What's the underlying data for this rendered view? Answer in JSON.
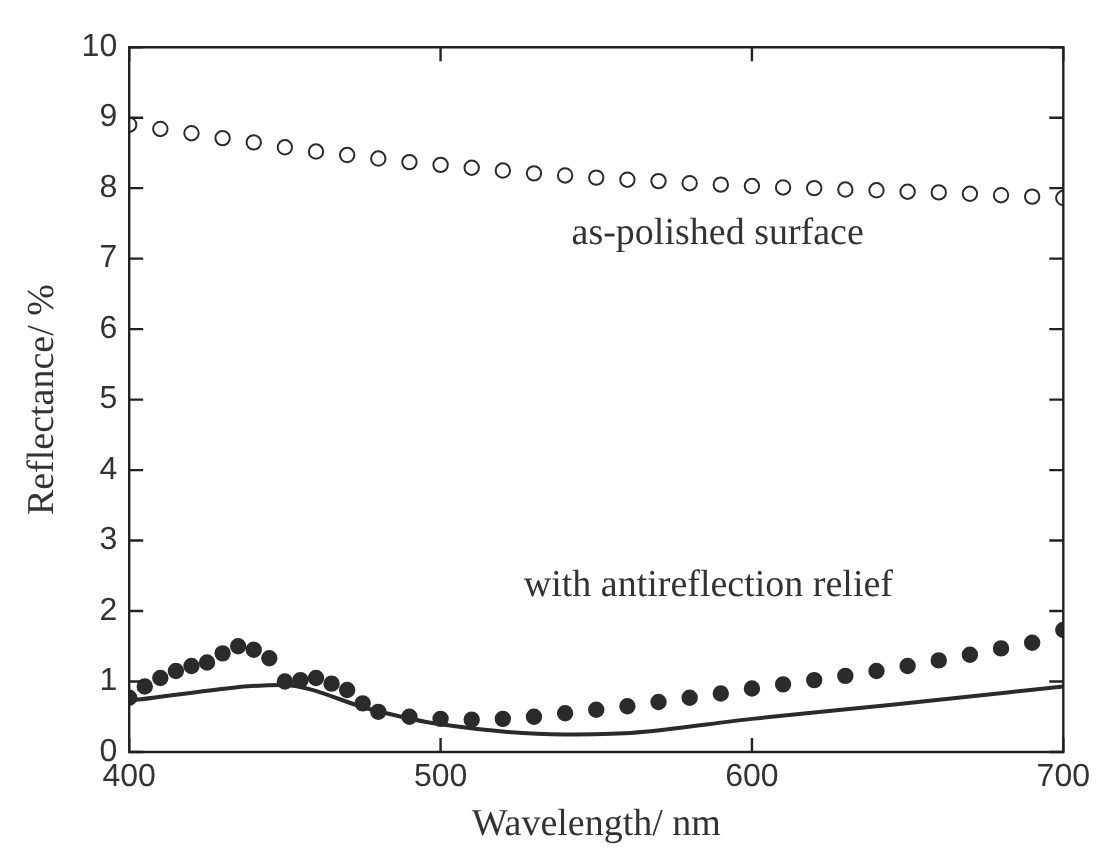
{
  "chart_data": {
    "type": "line",
    "xlabel": "Wavelength/ nm",
    "ylabel": "Reflectance/ %",
    "xlim": [
      400,
      700
    ],
    "xticks": [
      400,
      500,
      600,
      700
    ],
    "ylim": [
      0,
      10
    ],
    "yticks": [
      0,
      1,
      2,
      3,
      4,
      5,
      6,
      7,
      8,
      9,
      10
    ],
    "grid": false,
    "series": [
      {
        "type": "scatter",
        "marker": "circle",
        "color": "#ffffff",
        "x": [
          400,
          410,
          420,
          430,
          440,
          450,
          460,
          470,
          480,
          490,
          500,
          510,
          520,
          530,
          540,
          550,
          560,
          570,
          580,
          590,
          600,
          610,
          620,
          630,
          640,
          650,
          660,
          670,
          680,
          690,
          700
        ],
        "values": [
          8.9,
          8.84,
          8.78,
          8.71,
          8.65,
          8.58,
          8.52,
          8.47,
          8.42,
          8.37,
          8.33,
          8.29,
          8.25,
          8.21,
          8.18,
          8.15,
          8.12,
          8.1,
          8.07,
          8.05,
          8.03,
          8.01,
          8.0,
          7.98,
          7.97,
          7.95,
          7.94,
          7.92,
          7.9,
          7.88,
          7.86
        ]
      },
      {
        "type": "scatter",
        "marker": "circle",
        "color": "#2b2b2b",
        "x": [
          400,
          405,
          410,
          415,
          420,
          425,
          430,
          435,
          440,
          445,
          450,
          455,
          460,
          465,
          470,
          475,
          480,
          490,
          500,
          510,
          520,
          530,
          540,
          550,
          560,
          570,
          580,
          590,
          600,
          610,
          620,
          630,
          640,
          650,
          660,
          670,
          680,
          690,
          700
        ],
        "values": [
          0.77,
          0.93,
          1.05,
          1.15,
          1.22,
          1.27,
          1.4,
          1.5,
          1.45,
          1.33,
          1.0,
          1.02,
          1.05,
          0.97,
          0.88,
          0.69,
          0.57,
          0.5,
          0.47,
          0.46,
          0.47,
          0.5,
          0.55,
          0.6,
          0.65,
          0.71,
          0.77,
          0.83,
          0.9,
          0.96,
          1.02,
          1.08,
          1.15,
          1.22,
          1.3,
          1.38,
          1.47,
          1.55,
          1.73
        ]
      },
      {
        "marker": "none",
        "line_style": "solid",
        "color": "#2b2b2b",
        "x": [
          400,
          449,
          478,
          499,
          540,
          561,
          600,
          645,
          700
        ],
        "values": [
          0.73,
          0.95,
          0.6,
          0.4,
          0.25,
          0.27,
          0.47,
          0.67,
          0.93
        ]
      }
    ],
    "annotations": [
      "as-polished surface",
      "with antireflection relief"
    ],
    "legend": false
  }
}
